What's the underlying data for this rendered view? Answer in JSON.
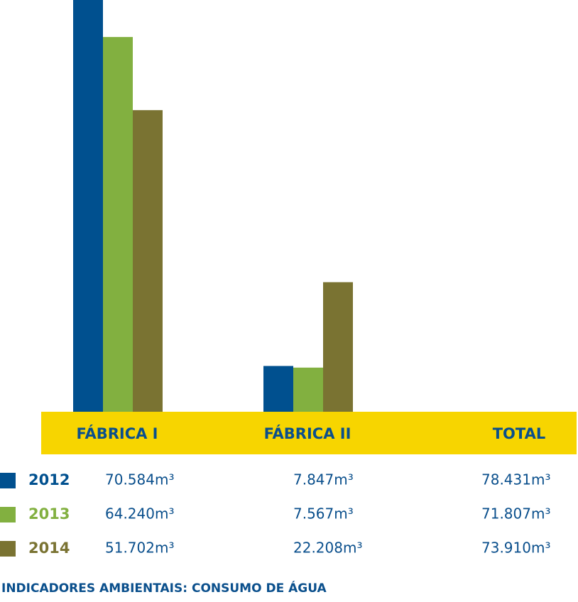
{
  "chart_data": {
    "type": "bar",
    "title": "INDICADORES AMBIENTAIS: CONSUMO DE ÁGUA",
    "categories": [
      "FÁBRICA I",
      "FÁBRICA II"
    ],
    "series": [
      {
        "name": "2012",
        "color": "#00508f",
        "values": [
          70584,
          7847
        ],
        "value_labels": [
          "70.584m³",
          "7.847m³"
        ]
      },
      {
        "name": "2013",
        "color": "#82b040",
        "values": [
          64240,
          7567
        ],
        "value_labels": [
          "64.240m³",
          "7.567m³"
        ]
      },
      {
        "name": "2014",
        "color": "#7a7332",
        "values": [
          51702,
          22208
        ],
        "value_labels": [
          "51.702m³",
          "22.208m³"
        ]
      }
    ],
    "totals": {
      "label": "TOTAL",
      "values": [
        78431,
        71807,
        73910
      ],
      "value_labels": [
        "78.431m³",
        "71.807m³",
        "73.910m³"
      ]
    }
  }
}
